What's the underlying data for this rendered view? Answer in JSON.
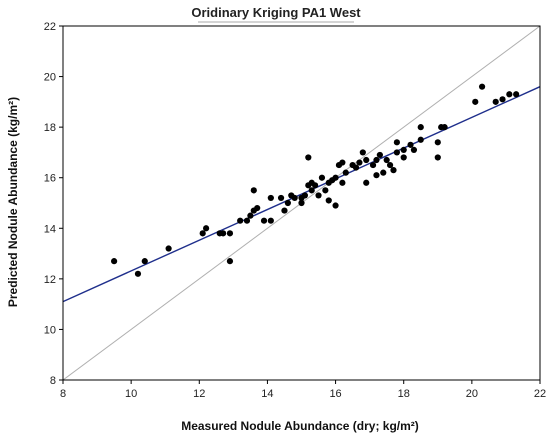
{
  "chart_data": {
    "type": "scatter",
    "title": "Oridinary Kriging PA1 West",
    "xlabel": "Measured Nodule Abundance (dry; kg/m²)",
    "ylabel": "Predicted Nodule Abundance (kg/m²)",
    "xlim": [
      8,
      22
    ],
    "ylim": [
      8,
      22
    ],
    "xticks": [
      8,
      10,
      12,
      14,
      16,
      18,
      20,
      22
    ],
    "yticks": [
      8,
      10,
      12,
      14,
      16,
      18,
      20,
      22
    ],
    "grid": false,
    "legend": "none",
    "colors": {
      "points": "#000000",
      "regression_line": "#1f2f8c",
      "identity_line": "#b0b0b0",
      "frame": "#000000"
    },
    "regression_line": {
      "x": [
        8,
        22
      ],
      "y": [
        11.1,
        19.6
      ]
    },
    "identity_line": {
      "x": [
        8,
        22
      ],
      "y": [
        8,
        22
      ]
    },
    "points": [
      {
        "x": 9.5,
        "y": 12.7
      },
      {
        "x": 10.2,
        "y": 12.2
      },
      {
        "x": 10.4,
        "y": 12.7
      },
      {
        "x": 11.1,
        "y": 13.2
      },
      {
        "x": 12.1,
        "y": 13.8
      },
      {
        "x": 12.2,
        "y": 14.0
      },
      {
        "x": 12.6,
        "y": 13.8
      },
      {
        "x": 12.7,
        "y": 13.8
      },
      {
        "x": 12.9,
        "y": 12.7
      },
      {
        "x": 12.9,
        "y": 13.8
      },
      {
        "x": 13.2,
        "y": 14.3
      },
      {
        "x": 13.4,
        "y": 14.3
      },
      {
        "x": 13.5,
        "y": 14.5
      },
      {
        "x": 13.6,
        "y": 14.7
      },
      {
        "x": 13.6,
        "y": 15.5
      },
      {
        "x": 13.7,
        "y": 14.8
      },
      {
        "x": 13.9,
        "y": 14.3
      },
      {
        "x": 14.1,
        "y": 14.3
      },
      {
        "x": 14.1,
        "y": 15.2
      },
      {
        "x": 14.4,
        "y": 15.2
      },
      {
        "x": 14.5,
        "y": 14.7
      },
      {
        "x": 14.6,
        "y": 15.0
      },
      {
        "x": 14.7,
        "y": 15.3
      },
      {
        "x": 14.8,
        "y": 15.2
      },
      {
        "x": 15.0,
        "y": 15.0
      },
      {
        "x": 15.0,
        "y": 15.2
      },
      {
        "x": 15.1,
        "y": 15.3
      },
      {
        "x": 15.2,
        "y": 15.7
      },
      {
        "x": 15.2,
        "y": 16.8
      },
      {
        "x": 15.3,
        "y": 15.5
      },
      {
        "x": 15.3,
        "y": 15.8
      },
      {
        "x": 15.4,
        "y": 15.7
      },
      {
        "x": 15.5,
        "y": 15.3
      },
      {
        "x": 15.6,
        "y": 16.0
      },
      {
        "x": 15.7,
        "y": 15.5
      },
      {
        "x": 15.8,
        "y": 15.8
      },
      {
        "x": 15.8,
        "y": 15.1
      },
      {
        "x": 15.9,
        "y": 15.9
      },
      {
        "x": 16.0,
        "y": 16.0
      },
      {
        "x": 16.0,
        "y": 14.9
      },
      {
        "x": 16.1,
        "y": 16.5
      },
      {
        "x": 16.2,
        "y": 16.6
      },
      {
        "x": 16.2,
        "y": 15.8
      },
      {
        "x": 16.3,
        "y": 16.2
      },
      {
        "x": 16.5,
        "y": 16.5
      },
      {
        "x": 16.6,
        "y": 16.4
      },
      {
        "x": 16.7,
        "y": 16.6
      },
      {
        "x": 16.8,
        "y": 17.0
      },
      {
        "x": 16.9,
        "y": 16.7
      },
      {
        "x": 16.9,
        "y": 15.8
      },
      {
        "x": 17.1,
        "y": 16.5
      },
      {
        "x": 17.2,
        "y": 16.7
      },
      {
        "x": 17.2,
        "y": 16.1
      },
      {
        "x": 17.3,
        "y": 16.9
      },
      {
        "x": 17.4,
        "y": 16.2
      },
      {
        "x": 17.5,
        "y": 16.7
      },
      {
        "x": 17.6,
        "y": 16.5
      },
      {
        "x": 17.7,
        "y": 16.3
      },
      {
        "x": 17.8,
        "y": 17.0
      },
      {
        "x": 17.8,
        "y": 17.4
      },
      {
        "x": 18.0,
        "y": 16.8
      },
      {
        "x": 18.0,
        "y": 17.1
      },
      {
        "x": 18.2,
        "y": 17.3
      },
      {
        "x": 18.3,
        "y": 17.1
      },
      {
        "x": 18.5,
        "y": 17.5
      },
      {
        "x": 18.5,
        "y": 18.0
      },
      {
        "x": 19.0,
        "y": 16.8
      },
      {
        "x": 19.0,
        "y": 17.4
      },
      {
        "x": 19.1,
        "y": 18.0
      },
      {
        "x": 19.2,
        "y": 18.0
      },
      {
        "x": 20.1,
        "y": 19.0
      },
      {
        "x": 20.3,
        "y": 19.6
      },
      {
        "x": 20.7,
        "y": 19.0
      },
      {
        "x": 20.9,
        "y": 19.1
      },
      {
        "x": 21.1,
        "y": 19.3
      },
      {
        "x": 21.3,
        "y": 19.3
      }
    ]
  }
}
